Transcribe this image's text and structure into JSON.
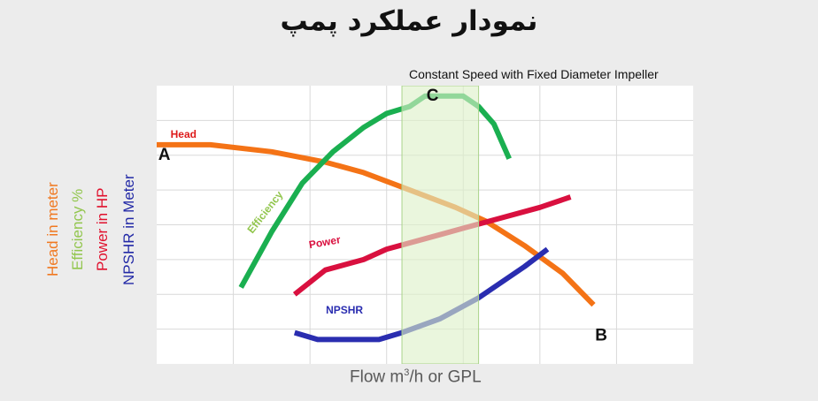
{
  "title": "نمودار عملکرد پمپ",
  "subtitle": "Constant Speed with Fixed Diameter Impeller",
  "y_axis_labels": [
    {
      "text": "Head in meter",
      "color": "#f07820"
    },
    {
      "text": "Efficiency %",
      "color": "#92c64e"
    },
    {
      "text": "Power in HP",
      "color": "#e0102d"
    },
    {
      "text": "NPSHR in Meter",
      "color": "#2229a6"
    }
  ],
  "x_axis_label": {
    "before": "Flow m",
    "sup": "3",
    "after": "/h or GPL"
  },
  "chart_data": {
    "type": "line",
    "grid": true,
    "xlim": [
      0,
      7
    ],
    "ylim": [
      0,
      8
    ],
    "highlight_band": {
      "x": [
        3.2,
        4.2
      ],
      "color": "#ddf0c8"
    },
    "series": [
      {
        "name": "Head",
        "color": "#f47316",
        "label_color": "#dd1a1a",
        "x": [
          0,
          0.7,
          1.5,
          2.2,
          2.7,
          3.3,
          3.9,
          4.3,
          4.8,
          5.3,
          5.7
        ],
        "y": [
          6.3,
          6.3,
          6.1,
          5.8,
          5.5,
          5.0,
          4.5,
          4.1,
          3.4,
          2.6,
          1.7
        ]
      },
      {
        "name": "Efficiency",
        "color": "#1aaf50",
        "label_color": "#92c64e",
        "x": [
          1.1,
          1.5,
          1.9,
          2.3,
          2.7,
          3.0,
          3.3,
          3.5,
          3.8,
          4.0,
          4.2,
          4.4,
          4.6
        ],
        "y": [
          2.2,
          3.8,
          5.2,
          6.1,
          6.8,
          7.2,
          7.4,
          7.7,
          7.7,
          7.7,
          7.4,
          6.9,
          5.9
        ]
      },
      {
        "name": "Power",
        "color": "#d9103f",
        "label_color": "#d9103f",
        "x": [
          1.8,
          2.2,
          2.7,
          3.0,
          3.5,
          4.0,
          4.5,
          5.0,
          5.4
        ],
        "y": [
          2.0,
          2.7,
          3.0,
          3.3,
          3.6,
          3.9,
          4.2,
          4.5,
          4.8
        ]
      },
      {
        "name": "NPSHR",
        "color": "#2a2db0",
        "label_color": "#2a2db0",
        "x": [
          1.8,
          2.1,
          2.6,
          2.9,
          3.2,
          3.7,
          4.2,
          4.8,
          5.1
        ],
        "y": [
          0.9,
          0.7,
          0.7,
          0.7,
          0.9,
          1.3,
          1.9,
          2.8,
          3.3
        ]
      }
    ],
    "annotations": [
      {
        "text": "A",
        "x": 0.1,
        "y": 6.0
      },
      {
        "text": "B",
        "x": 5.8,
        "y": 0.8
      },
      {
        "text": "C",
        "x": 3.6,
        "y": 7.7
      }
    ]
  }
}
